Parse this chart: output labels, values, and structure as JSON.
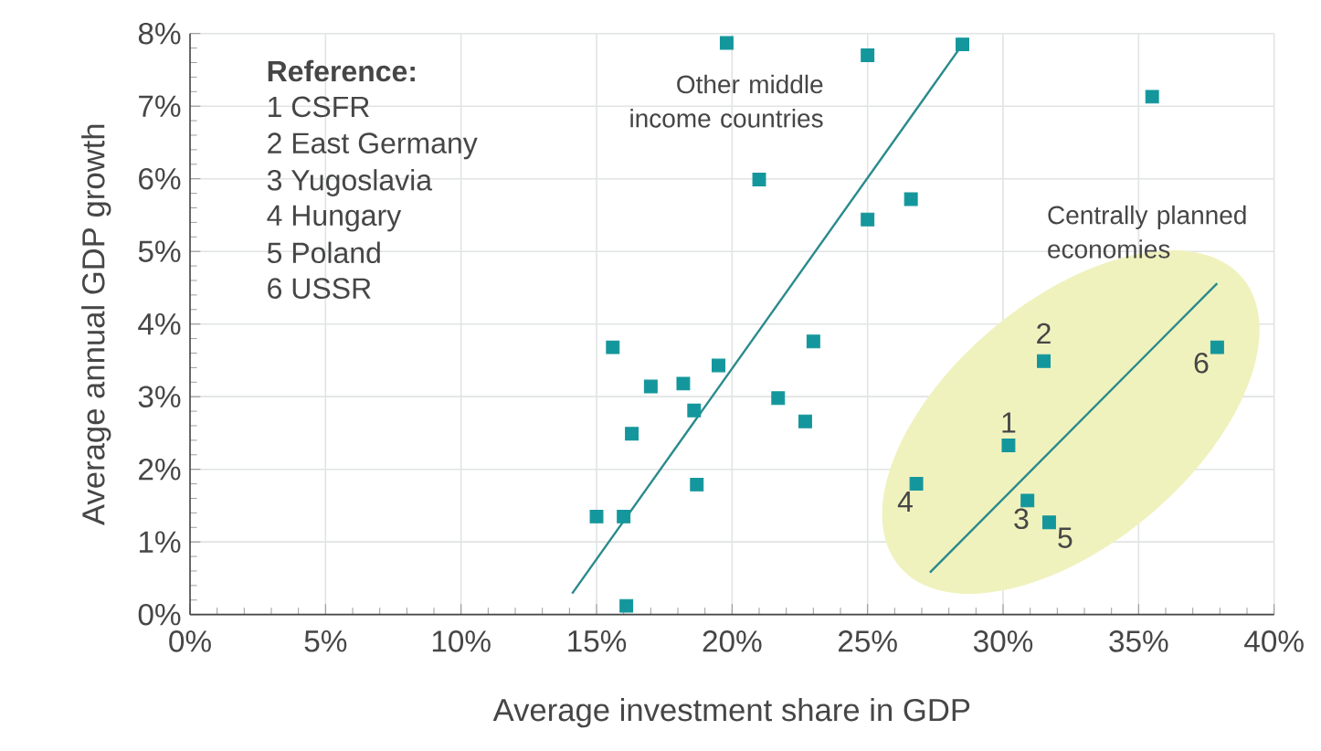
{
  "chart_data": {
    "type": "scatter",
    "xlabel": "Average investment share in GDP",
    "ylabel": "Average annual GDP growth",
    "xlim": [
      0,
      40
    ],
    "xticks": [
      {
        "value": 0,
        "label": "0%"
      },
      {
        "value": 5,
        "label": "5%"
      },
      {
        "value": 10,
        "label": "10%"
      },
      {
        "value": 15,
        "label": "15%"
      },
      {
        "value": 20,
        "label": "20%"
      },
      {
        "value": 25,
        "label": "25%"
      },
      {
        "value": 30,
        "label": "30%"
      },
      {
        "value": 35,
        "label": "35%"
      },
      {
        "value": 40,
        "label": "40%"
      }
    ],
    "ylim": [
      0,
      8
    ],
    "yticks": [
      {
        "value": 0,
        "label": "0%"
      },
      {
        "value": 1,
        "label": "1%"
      },
      {
        "value": 2,
        "label": "2%"
      },
      {
        "value": 3,
        "label": "3%"
      },
      {
        "value": 4,
        "label": "4%"
      },
      {
        "value": 5,
        "label": "5%"
      },
      {
        "value": 6,
        "label": "6%"
      },
      {
        "value": 7,
        "label": "7%"
      },
      {
        "value": 8,
        "label": "8%"
      }
    ],
    "grid": true,
    "marker": "square",
    "series": [
      {
        "color": "#14979c",
        "x": [
          19.8,
          25.0,
          28.5,
          35.5,
          21.0,
          25.0,
          26.6,
          15.6,
          23.0,
          19.5,
          17.0,
          18.2,
          18.6,
          21.7,
          22.7,
          16.3,
          18.7,
          15.0,
          16.0,
          16.1
        ],
        "values": [
          7.87,
          7.7,
          7.85,
          7.13,
          5.99,
          5.44,
          5.72,
          3.68,
          3.76,
          3.43,
          3.14,
          3.18,
          2.81,
          2.98,
          2.66,
          2.49,
          1.79,
          1.35,
          1.35,
          0.12
        ]
      },
      {
        "color": "#14979c",
        "x": [
          30.2,
          31.5,
          30.9,
          26.8,
          31.7,
          37.9
        ],
        "values": [
          2.33,
          3.49,
          1.57,
          1.8,
          1.27,
          3.68
        ]
      },
      {
        "type": "line",
        "marker": "none",
        "color": "#2a8a8c",
        "x": [
          14.1,
          28.5
        ],
        "values": [
          0.29,
          7.85
        ]
      },
      {
        "type": "line",
        "marker": "none",
        "color": "#2a8a8c",
        "x": [
          27.3,
          37.9
        ],
        "values": [
          0.58,
          4.56
        ]
      }
    ],
    "annotations": [
      "Reference:",
      "1 CSFR",
      "2 East Germany",
      "3 Yugoslavia",
      "4 Hungary",
      "5 Poland",
      "6 USSR",
      "Other middle income countries",
      "Centrally planned economies",
      {
        "text": "1",
        "x": 30.2,
        "y": 2.33
      },
      {
        "text": "2",
        "x": 31.5,
        "y": 3.49
      },
      {
        "text": "3",
        "x": 30.9,
        "y": 1.57
      },
      {
        "text": "4",
        "x": 26.8,
        "y": 1.8
      },
      {
        "text": "5",
        "x": 31.7,
        "y": 1.27
      },
      {
        "text": "6",
        "x": 37.9,
        "y": 3.68
      }
    ]
  }
}
